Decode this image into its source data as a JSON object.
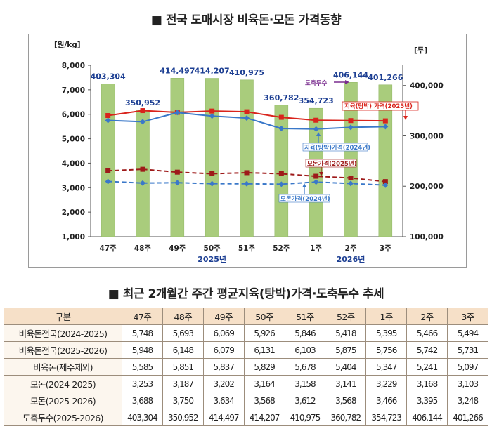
{
  "title_chart": "■ 전국 도매시장 비육돈·모돈 가격동향",
  "title_table": "■ 최근 2개월간 주간 평균지육(탕박)가격·도축두수 추세",
  "colors": {
    "bar": "#a9cc7c",
    "bar_border": "#8fb562",
    "pork_2025": "#d9241c",
    "pork_2024": "#3a78c9",
    "sow_2025": "#9e1a1a",
    "sow_2024": "#3a78c9",
    "table_header_bg": "#f6e0c8",
    "table_border": "#9c8d7c",
    "label_blue": "#1d3f93",
    "slaughter_arrow": "#7a2d8f"
  },
  "chart_data": {
    "type": "bar+line",
    "title": "전국 도매시장 비육돈·모돈 가격동향",
    "categories": [
      "47주",
      "48주",
      "49주",
      "50주",
      "51주",
      "52주",
      "1주",
      "2주",
      "3주"
    ],
    "year_labels": [
      {
        "label": "2025년",
        "category": "50주"
      },
      {
        "label": "2026년",
        "category": "2주"
      }
    ],
    "left_axis": {
      "unit": "[원/kg]",
      "min": 1000,
      "max": 8000,
      "ticks": [
        1000,
        2000,
        3000,
        4000,
        5000,
        6000,
        7000,
        8000
      ]
    },
    "right_axis": {
      "unit": "[두]",
      "min": 100000,
      "max": 440000,
      "ticks": [
        100000,
        200000,
        300000,
        400000
      ]
    },
    "bars": {
      "name": "도축두수",
      "axis": "right",
      "values": [
        403304,
        350952,
        414497,
        414207,
        410975,
        360782,
        354723,
        406144,
        401266
      ],
      "labels": [
        "403,304",
        "350,952",
        "414,497",
        "414,207",
        "410,975",
        "360,782",
        "354,723",
        "406,144",
        "401,266"
      ]
    },
    "series": [
      {
        "name": "지육(탕박) 가격(2025년)",
        "key": "pork_2025",
        "axis": "left",
        "style": "solid-square",
        "values": [
          5948,
          6148,
          6079,
          6131,
          6103,
          5875,
          5756,
          5742,
          5731
        ]
      },
      {
        "name": "지육(탕박)가격(2024년)",
        "key": "pork_2024",
        "axis": "left",
        "style": "solid-diamond",
        "values": [
          5748,
          5693,
          6069,
          5926,
          5846,
          5418,
          5395,
          5466,
          5494
        ]
      },
      {
        "name": "모돈가격(2025년)",
        "key": "sow_2025",
        "axis": "left",
        "style": "dashed-square",
        "values": [
          3688,
          3750,
          3634,
          3568,
          3612,
          3568,
          3466,
          3395,
          3248
        ]
      },
      {
        "name": "모돈가격(2024년)",
        "key": "sow_2024",
        "axis": "left",
        "style": "dashed-diamond",
        "values": [
          3253,
          3187,
          3202,
          3164,
          3158,
          3141,
          3229,
          3168,
          3103
        ]
      }
    ],
    "annotations": {
      "slaughter": "도축두수",
      "pork_2025": "지육(탕박) 가격(2025년)",
      "pork_2024": "지육(탕박)가격(2024년)",
      "sow_2025": "모돈가격(2025년)",
      "sow_2024": "모돈가격(2024년)"
    }
  },
  "table": {
    "headers": [
      "구분",
      "47주",
      "48주",
      "49주",
      "50주",
      "51주",
      "52주",
      "1주",
      "2주",
      "3주"
    ],
    "rows": [
      {
        "label": "비육돈전국(2024-2025)",
        "values": [
          "5,748",
          "5,693",
          "6,069",
          "5,926",
          "5,846",
          "5,418",
          "5,395",
          "5,466",
          "5,494"
        ]
      },
      {
        "label": "비육돈전국(2025-2026)",
        "values": [
          "5,948",
          "6,148",
          "6,079",
          "6,131",
          "6,103",
          "5,875",
          "5,756",
          "5,742",
          "5,731"
        ]
      },
      {
        "label": "비육돈(제주제외)",
        "values": [
          "5,585",
          "5,851",
          "5,837",
          "5,829",
          "5,678",
          "5,404",
          "5,347",
          "5,241",
          "5,097"
        ]
      },
      {
        "label": "모돈(2024-2025)",
        "values": [
          "3,253",
          "3,187",
          "3,202",
          "3,164",
          "3,158",
          "3,141",
          "3,229",
          "3,168",
          "3,103"
        ]
      },
      {
        "label": "모돈(2025-2026)",
        "values": [
          "3,688",
          "3,750",
          "3,634",
          "3,568",
          "3,612",
          "3,568",
          "3,466",
          "3,395",
          "3,248"
        ]
      },
      {
        "label": "도축두수(2025-2026)",
        "values": [
          "403,304",
          "350,952",
          "414,497",
          "414,207",
          "410,975",
          "360,782",
          "354,723",
          "406,144",
          "401,266"
        ]
      }
    ]
  }
}
